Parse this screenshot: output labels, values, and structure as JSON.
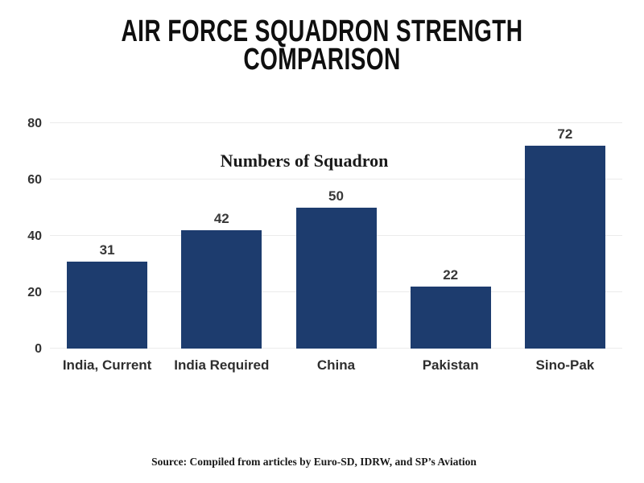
{
  "title": {
    "line1": "AIR FORCE SQUADRON STRENGTH",
    "line2": "COMPARISON"
  },
  "chart_data": {
    "type": "bar",
    "title": "Numbers of Squadron",
    "categories": [
      "India, Current",
      "India Required",
      "China",
      "Pakistan",
      "Sino-Pak"
    ],
    "values": [
      31,
      42,
      50,
      22,
      72
    ],
    "yticks": [
      0,
      20,
      40,
      60,
      80
    ],
    "ylim": [
      0,
      80
    ],
    "bar_color": "#1d3c6e",
    "grid": true,
    "gridline_color": "#ebebeb",
    "tick_label_color": "#333333",
    "legend": "none",
    "xlabel": "",
    "ylabel": ""
  },
  "source": "Source: Compiled from articles by Euro-SD, IDRW, and SP’s Aviation"
}
